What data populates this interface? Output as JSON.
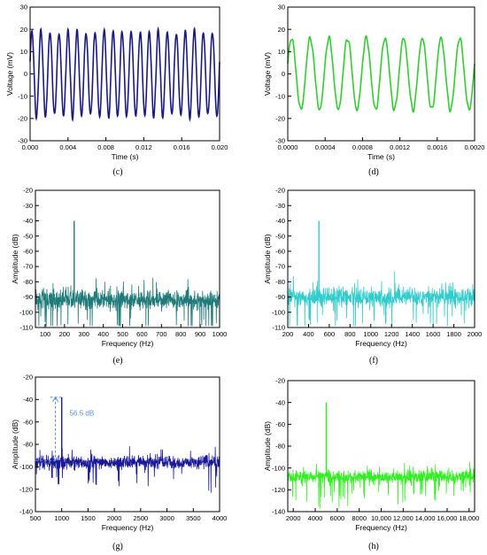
{
  "panel_labels": [
    "(c)",
    "(d)",
    "(e)",
    "(f)",
    "(g)",
    "(h)"
  ],
  "colors": {
    "c": "#1a1a80",
    "d": "#33cc33",
    "e": "#1f7a7a",
    "f": "#33cccc",
    "g": "#1a1a99",
    "h": "#33ee22",
    "annotation": "#5b8fd6",
    "axis": "#000000"
  },
  "chart_data": [
    {
      "panel": "(c)",
      "type": "line",
      "xlabel": "Time (s)",
      "ylabel": "Voltage (mV)",
      "xlim": [
        0.0,
        0.02
      ],
      "ylim": [
        -30,
        30
      ],
      "xticks": [
        "0.000",
        "0.004",
        "0.008",
        "0.012",
        "0.016",
        "0.020"
      ],
      "yticks": [
        "-30",
        "-20",
        "-10",
        "0",
        "10",
        "20",
        "30"
      ],
      "series": [
        {
          "kind": "sine",
          "amplitude_mV": 19,
          "cycles_in_window": 21
        }
      ]
    },
    {
      "panel": "(d)",
      "type": "line",
      "xlabel": "Time (s)",
      "ylabel": "Voltage (mV)",
      "xlim": [
        0.0,
        0.002
      ],
      "ylim": [
        -30,
        30
      ],
      "xticks": [
        "0.0000",
        "0.0004",
        "0.0008",
        "0.0012",
        "0.0016",
        "0.0020"
      ],
      "yticks": [
        "-30",
        "-20",
        "-10",
        "0",
        "10",
        "20",
        "30"
      ],
      "series": [
        {
          "kind": "sine",
          "amplitude_mV": 16,
          "frequency_hz": 5000
        }
      ]
    },
    {
      "panel": "(e)",
      "type": "line",
      "xlabel": "Frequency (Hz)",
      "ylabel": "Amplitude (dB)",
      "xlim": [
        50,
        1000
      ],
      "ylim": [
        -110,
        -20
      ],
      "xticks": [
        "100",
        "200",
        "300",
        "400",
        "500",
        "600",
        "700",
        "800",
        "900",
        "1000"
      ],
      "yticks": [
        "-110",
        "-100",
        "-90",
        "-80",
        "-70",
        "-60",
        "-50",
        "-40",
        "-30",
        "-20"
      ],
      "series": [
        {
          "kind": "spectrum",
          "noise_floor_db": -92,
          "peak": {
            "x": 250,
            "y": -40
          }
        }
      ]
    },
    {
      "panel": "(f)",
      "type": "line",
      "xlabel": "Frequency (Hz)",
      "ylabel": "Amplitude (dB)",
      "xlim": [
        200,
        2000
      ],
      "ylim": [
        -110,
        -20
      ],
      "xticks": [
        "200",
        "400",
        "600",
        "800",
        "1000",
        "1200",
        "1400",
        "1600",
        "1800",
        "2000"
      ],
      "yticks": [
        "-110",
        "-100",
        "-90",
        "-80",
        "-70",
        "-60",
        "-50",
        "-40",
        "-30",
        "-20"
      ],
      "series": [
        {
          "kind": "spectrum",
          "noise_floor_db": -90,
          "peak": {
            "x": 500,
            "y": -40
          }
        }
      ]
    },
    {
      "panel": "(g)",
      "type": "line",
      "xlabel": "Frequency (Hz)",
      "ylabel": "Amplitude (dB)",
      "xlim": [
        500,
        4000
      ],
      "ylim": [
        -140,
        -20
      ],
      "xticks": [
        "500",
        "1000",
        "1500",
        "2000",
        "2500",
        "3000",
        "3500",
        "4000"
      ],
      "yticks": [
        "-140",
        "-120",
        "-100",
        "-80",
        "-60",
        "-40",
        "-20"
      ],
      "series": [
        {
          "kind": "spectrum",
          "noise_floor_db": -96,
          "peak": {
            "x": 1000,
            "y": -38
          }
        }
      ],
      "annotation": {
        "text": "56.5 dB",
        "from_db": -94.5,
        "to_db": -38,
        "at_x": 880
      }
    },
    {
      "panel": "(h)",
      "type": "line",
      "xlabel": "Frequency (Hz)",
      "ylabel": "Amplitude (dB)",
      "xlim": [
        1500,
        18500
      ],
      "ylim": [
        -140,
        -20
      ],
      "xticks": [
        "2000",
        "4000",
        "6000",
        "8000",
        "10,000",
        "12,000",
        "14,000",
        "16,000",
        "18,000"
      ],
      "yticks": [
        "-140",
        "-120",
        "-100",
        "-80",
        "-60",
        "-40",
        "-20"
      ],
      "series": [
        {
          "kind": "spectrum",
          "noise_floor_db": -108,
          "peak": {
            "x": 5000,
            "y": -40
          }
        }
      ]
    }
  ]
}
